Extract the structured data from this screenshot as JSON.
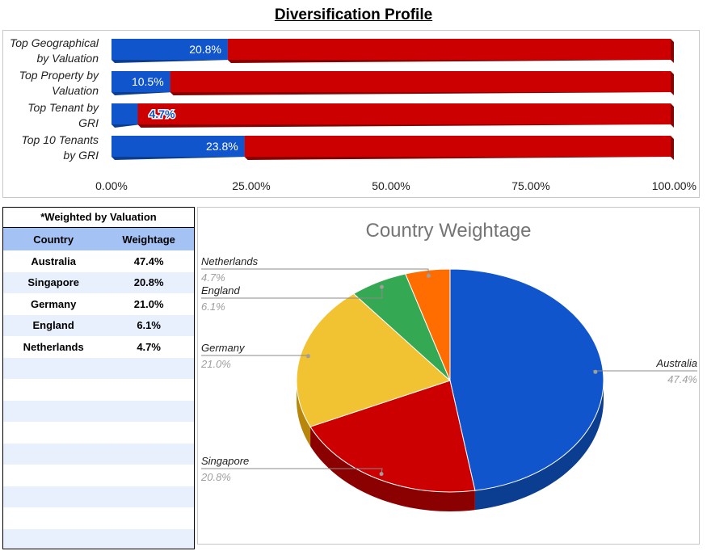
{
  "page_title": "Diversification Profile",
  "chart_data": [
    {
      "type": "bar",
      "stacked": true,
      "orientation": "horizontal",
      "categories": [
        "Top Geographical by Valuation",
        "Top Property by Valuation",
        "Top Tenant by GRI",
        "Top 10 Tenants by GRI"
      ],
      "category_lines": [
        [
          "Top Geographical",
          "by Valuation"
        ],
        [
          "Top Property by",
          "Valuation"
        ],
        [
          "Top Tenant by",
          "GRI"
        ],
        [
          "Top 10 Tenants",
          "by GRI"
        ]
      ],
      "series": [
        {
          "values": [
            20.8,
            10.5,
            4.7,
            23.8
          ],
          "color": "#1155cc"
        },
        {
          "values": [
            79.2,
            89.5,
            95.3,
            76.2
          ],
          "color": "#cc0000"
        }
      ],
      "data_labels": [
        "20.8%",
        "10.5%",
        "4.7%",
        "23.8%"
      ],
      "xlim": [
        0,
        100
      ],
      "ticks": [
        "0.00%",
        "25.00%",
        "50.00%",
        "75.00%",
        "100.00%"
      ],
      "tick_values": [
        0,
        25,
        50,
        75,
        100
      ]
    },
    {
      "type": "pie",
      "title": "Country Weightage",
      "three_d": true,
      "slices": [
        {
          "label": "Australia",
          "value": 47.4,
          "pct": "47.4%",
          "color": "#1155cc",
          "side_color": "#0b3d91"
        },
        {
          "label": "Singapore",
          "value": 20.8,
          "pct": "20.8%",
          "color": "#cc0000",
          "side_color": "#8b0000"
        },
        {
          "label": "Germany",
          "value": 21.0,
          "pct": "21.0%",
          "color": "#f1c232",
          "side_color": "#b8860b"
        },
        {
          "label": "England",
          "value": 6.1,
          "pct": "6.1%",
          "color": "#34a853",
          "side_color": "#1e7a34"
        },
        {
          "label": "Netherlands",
          "value": 4.7,
          "pct": "4.7%",
          "color": "#ff6d01",
          "side_color": "#b84a00"
        }
      ]
    }
  ],
  "table": {
    "note": "*Weighted by Valuation",
    "headers": [
      "Country",
      "Weightage"
    ],
    "rows": [
      [
        "Australia",
        "47.4%"
      ],
      [
        "Singapore",
        "20.8%"
      ],
      [
        "Germany",
        "21.0%"
      ],
      [
        "England",
        "6.1%"
      ],
      [
        "Netherlands",
        "4.7%"
      ]
    ],
    "empty_rows": 9
  }
}
